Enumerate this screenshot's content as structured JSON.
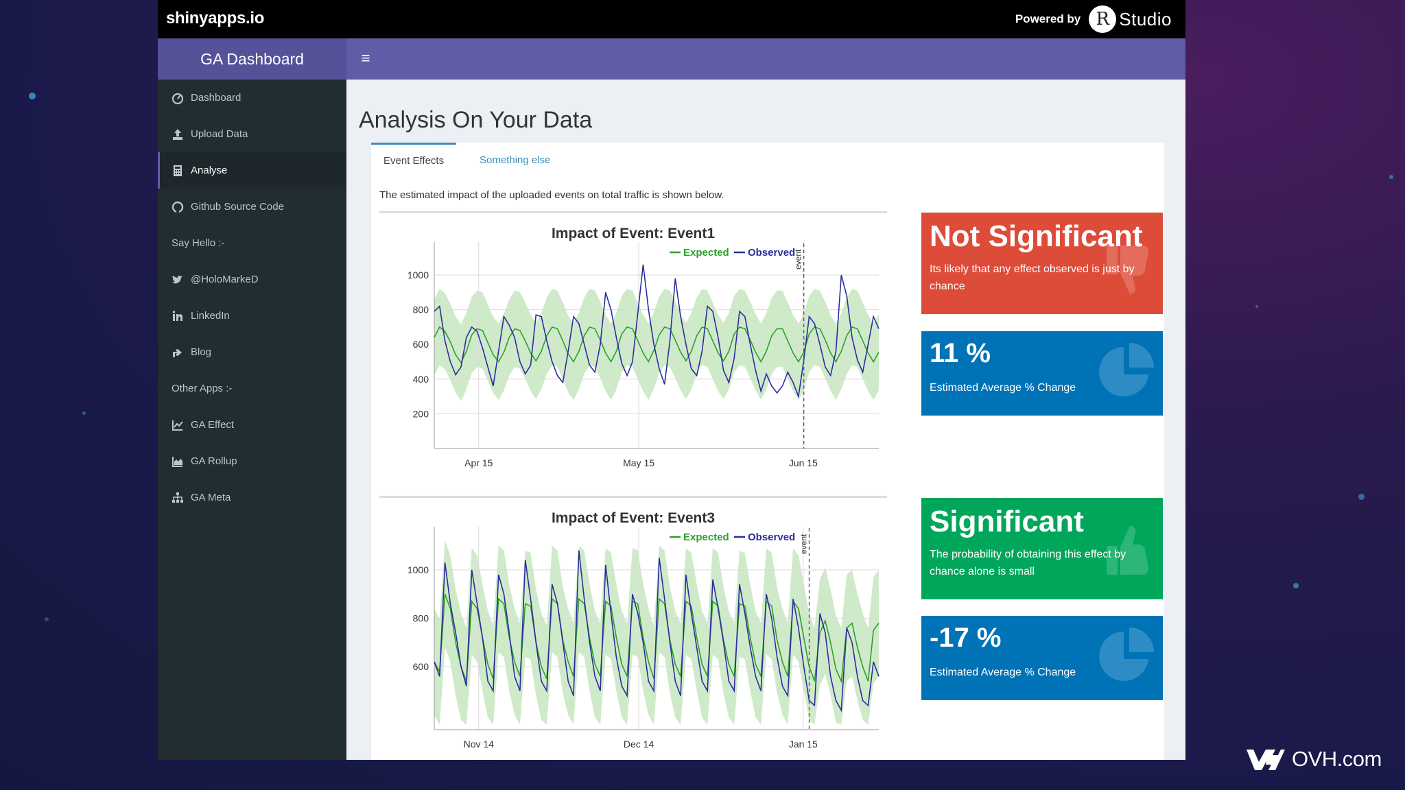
{
  "topbar": {
    "brand": "shinyapps.io",
    "powered_by": "Powered by",
    "r_letter": "R",
    "studio": "Studio"
  },
  "header": {
    "title": "GA Dashboard",
    "toggle_icon": "hamburger-icon"
  },
  "sidebar": {
    "items": [
      {
        "type": "link",
        "label": "Dashboard",
        "icon": "dashboard-icon"
      },
      {
        "type": "link",
        "label": "Upload Data",
        "icon": "upload-icon"
      },
      {
        "type": "link",
        "label": "Analyse",
        "icon": "calculator-icon",
        "active": true
      },
      {
        "type": "link",
        "label": "Github Source Code",
        "icon": "github-icon"
      },
      {
        "type": "header",
        "label": "Say Hello :-"
      },
      {
        "type": "link",
        "label": "@HoloMarkeD",
        "icon": "twitter-icon"
      },
      {
        "type": "link",
        "label": "LinkedIn",
        "icon": "linkedin-icon"
      },
      {
        "type": "link",
        "label": "Blog",
        "icon": "share-icon"
      },
      {
        "type": "header",
        "label": "Other Apps :-"
      },
      {
        "type": "link",
        "label": "GA Effect",
        "icon": "line-chart-icon"
      },
      {
        "type": "link",
        "label": "GA Rollup",
        "icon": "area-chart-icon"
      },
      {
        "type": "link",
        "label": "GA Meta",
        "icon": "sitemap-icon"
      }
    ]
  },
  "main": {
    "title": "Analysis On Your Data",
    "tabs": [
      {
        "label": "Event Effects",
        "active": true
      },
      {
        "label": "Something else",
        "active": false
      }
    ],
    "description": "The estimated impact of the uploaded events on total traffic is shown below.",
    "value_boxes": [
      {
        "value": "Not Significant",
        "subtitle": "Its likely that any effect observed is just by chance",
        "color": "#dd4b39",
        "icon": "thumbs-down-icon"
      },
      {
        "value": "11 %",
        "subtitle": "Estimated Average % Change",
        "color": "#0073b7",
        "icon": "pie-chart-icon"
      },
      {
        "value": "Significant",
        "subtitle": "The probability of obtaining this effect by chance alone is small",
        "color": "#00a65a",
        "icon": "thumbs-up-icon"
      },
      {
        "value": "-17 %",
        "subtitle": "Estimated Average % Change",
        "color": "#0073b7",
        "icon": "pie-chart-icon"
      }
    ]
  },
  "watermark": {
    "text": "OVH.com"
  },
  "colors": {
    "expected": "#2ca02c",
    "observed": "#2c2ca0",
    "band": "#c7e6c0",
    "header": "#605ca8",
    "sidebar": "#222d32"
  },
  "chart_data": [
    {
      "type": "line",
      "title": "Impact of Event: Event1",
      "legend": [
        "Expected",
        "Observed"
      ],
      "legend_position": "top-right",
      "x_ticks": [
        "Apr 15",
        "May 15",
        "Jun 15"
      ],
      "y_ticks": [
        200,
        400,
        600,
        800,
        1000
      ],
      "ylim": [
        0,
        1150
      ],
      "event_label": "event",
      "event_index": 69,
      "series": [
        {
          "name": "Expected",
          "values": [
            640,
            700,
            675,
            615,
            540,
            495,
            560,
            655,
            690,
            680,
            610,
            540,
            500,
            555,
            640,
            690,
            680,
            620,
            550,
            505,
            560,
            650,
            700,
            690,
            620,
            545,
            500,
            560,
            650,
            700,
            690,
            625,
            550,
            500,
            560,
            660,
            700,
            690,
            620,
            550,
            500,
            565,
            655,
            700,
            690,
            625,
            555,
            505,
            560,
            650,
            700,
            690,
            620,
            550,
            505,
            560,
            660,
            700,
            690,
            625,
            555,
            500,
            560,
            650,
            690,
            690,
            620,
            550,
            500,
            555,
            660,
            700,
            690,
            625,
            550,
            500,
            560,
            650,
            700,
            690,
            620,
            550,
            500,
            555
          ]
        },
        {
          "name": "Observed",
          "values": [
            790,
            820,
            620,
            500,
            425,
            470,
            640,
            700,
            675,
            580,
            470,
            360,
            560,
            760,
            710,
            640,
            500,
            430,
            480,
            770,
            760,
            620,
            500,
            420,
            380,
            560,
            760,
            720,
            600,
            480,
            440,
            600,
            900,
            800,
            640,
            490,
            420,
            500,
            780,
            1060,
            800,
            600,
            460,
            370,
            620,
            980,
            760,
            600,
            460,
            420,
            560,
            820,
            790,
            640,
            450,
            380,
            520,
            790,
            760,
            600,
            450,
            330,
            430,
            360,
            320,
            360,
            440,
            380,
            300,
            510,
            760,
            720,
            600,
            470,
            420,
            560,
            1000,
            880,
            640,
            510,
            440,
            600,
            760,
            690
          ]
        }
      ]
    },
    {
      "type": "line",
      "title": "Impact of Event: Event3",
      "legend": [
        "Expected",
        "Observed"
      ],
      "legend_position": "top-right",
      "x_ticks": [
        "Nov 14",
        "Dec 14",
        "Jan 15"
      ],
      "y_ticks": [
        600,
        800,
        1000
      ],
      "ylim": [
        340,
        1150
      ],
      "event_label": "event",
      "event_index": 70,
      "series": [
        {
          "name": "Expected",
          "values": [
            620,
            580,
            900,
            840,
            700,
            600,
            540,
            870,
            840,
            720,
            610,
            550,
            880,
            860,
            720,
            620,
            560,
            860,
            850,
            700,
            600,
            550,
            880,
            860,
            710,
            620,
            560,
            880,
            860,
            720,
            610,
            560,
            870,
            850,
            720,
            610,
            560,
            870,
            860,
            720,
            620,
            550,
            880,
            860,
            710,
            610,
            560,
            870,
            850,
            720,
            610,
            560,
            870,
            850,
            710,
            610,
            560,
            860,
            850,
            720,
            610,
            560,
            870,
            850,
            710,
            620,
            560,
            870,
            840,
            720,
            600,
            540,
            740,
            790,
            700,
            590,
            540,
            760,
            780,
            680,
            600,
            540,
            750,
            780
          ]
        },
        {
          "name": "Observed",
          "values": [
            620,
            560,
            1030,
            860,
            740,
            600,
            520,
            1000,
            860,
            720,
            540,
            500,
            980,
            900,
            740,
            560,
            500,
            1040,
            880,
            700,
            540,
            500,
            940,
            860,
            700,
            540,
            480,
            1080,
            880,
            700,
            560,
            500,
            1020,
            820,
            640,
            520,
            480,
            900,
            820,
            700,
            540,
            500,
            1050,
            880,
            700,
            540,
            480,
            980,
            820,
            680,
            540,
            500,
            960,
            840,
            700,
            540,
            500,
            940,
            820,
            680,
            560,
            500,
            900,
            800,
            640,
            520,
            480,
            880,
            760,
            600,
            460,
            440,
            820,
            740,
            560,
            460,
            420,
            760,
            700,
            560,
            460,
            440,
            620,
            560
          ]
        }
      ]
    }
  ]
}
